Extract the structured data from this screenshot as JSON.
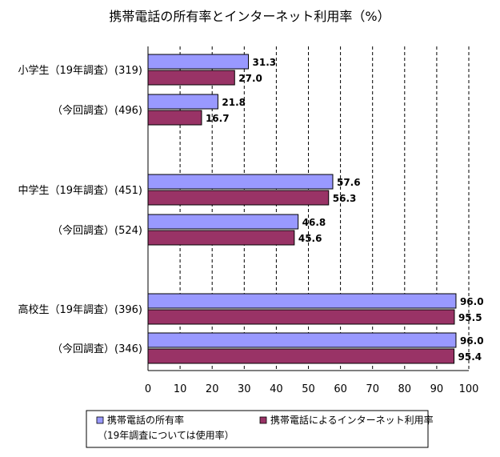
{
  "chart_data": {
    "type": "bar",
    "orientation": "horizontal",
    "title": "携帯電話の所有率とインターネット利用率（%）",
    "xlim": [
      0,
      100
    ],
    "x_ticks": [
      "0",
      "10",
      "20",
      "30",
      "40",
      "50",
      "60",
      "70",
      "80",
      "90",
      "100"
    ],
    "grid": "vertical-dashed",
    "categories": [
      "小学生（19年調査）(319)",
      "（今回調査）(496)",
      "中学生（19年調査）(451)",
      "（今回調査）(524)",
      "高校生（19年調査）(396)",
      "（今回調査）(346)"
    ],
    "series": [
      {
        "name": "携帯電話の所有率",
        "name_note": "（19年調査については使用率）",
        "color": "#9999ff",
        "values": [
          31.3,
          21.8,
          57.6,
          46.8,
          96.0,
          96.0
        ],
        "labels": [
          "31.3",
          "21.8",
          "57.6",
          "46.8",
          "96.0",
          "96.0"
        ]
      },
      {
        "name": "携帯電話によるインターネット利用率",
        "color": "#993366",
        "values": [
          27.0,
          16.7,
          56.3,
          45.6,
          95.5,
          95.4
        ],
        "labels": [
          "27.0",
          "16.7",
          "56.3",
          "45.6",
          "95.5",
          "95.4"
        ]
      }
    ],
    "legend_position": "bottom"
  }
}
